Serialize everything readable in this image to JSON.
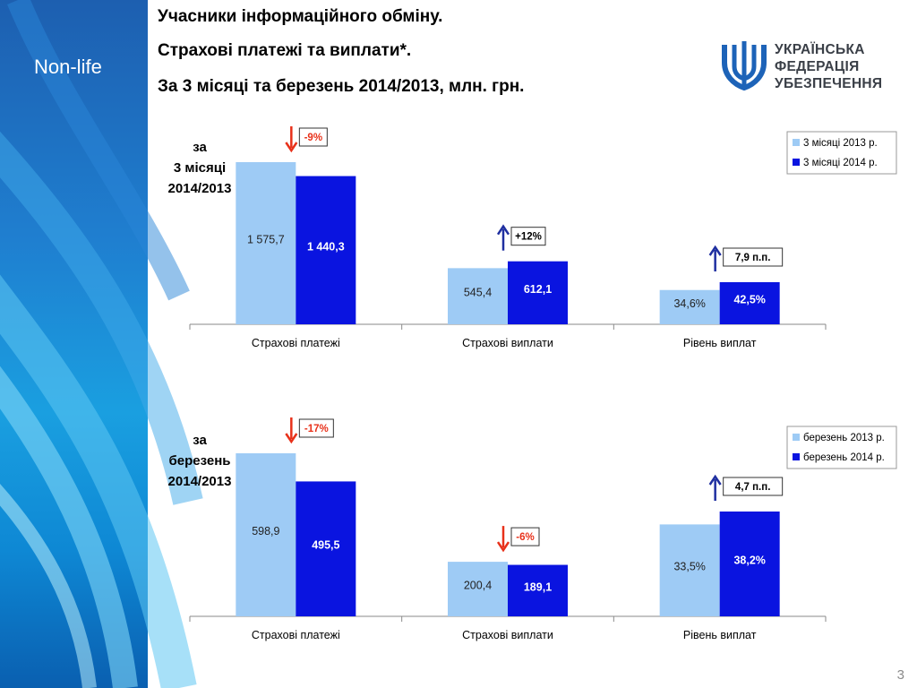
{
  "section_label": "Non-life",
  "title_lines": [
    "Учасники інформаційного обміну.",
    "Страхові платежі та виплати*.",
    "За 3 місяці та березень 2014/2013, млн. грн."
  ],
  "logo_text": [
    "УКРАЇНСЬКА",
    "ФЕДЕРАЦІЯ",
    "УБЕЗПЕЧЕННЯ"
  ],
  "page_number": "3",
  "colors": {
    "light_bar": "#9ecbf5",
    "dark_bar": "#0a14e0",
    "up_arrow": "#1f2fa0",
    "down_arrow": "#e8311a",
    "neg_text": "#e8311a",
    "logo_blue": "#1d63b8"
  },
  "chart_data": [
    {
      "type": "bar",
      "period_label": [
        "за",
        "3 місяці",
        "2014/2013"
      ],
      "categories": [
        "Страхові платежі",
        "Страхові виплати",
        "Рівень виплат"
      ],
      "series": [
        {
          "name": "3 місяці 2013 р.",
          "values": [
            1575.7,
            545.4,
            34.6
          ],
          "labels": [
            "1 575,7",
            "545,4",
            "34,6%"
          ]
        },
        {
          "name": "3 місяці 2014 р.",
          "values": [
            1440.3,
            612.1,
            42.5
          ],
          "labels": [
            "1 440,3",
            "612,1",
            "42,5%"
          ]
        }
      ],
      "changes": [
        {
          "text": "-9%",
          "direction": "down"
        },
        {
          "text": "+12%",
          "direction": "up"
        },
        {
          "text": "7,9 п.п.",
          "direction": "up"
        }
      ],
      "legend_position": "top-right"
    },
    {
      "type": "bar",
      "period_label": [
        "за",
        "березень",
        "2014/2013"
      ],
      "categories": [
        "Страхові платежі",
        "Страхові виплати",
        "Рівень виплат"
      ],
      "series": [
        {
          "name": "березень 2013 р.",
          "values": [
            598.9,
            200.4,
            33.5
          ],
          "labels": [
            "598,9",
            "200,4",
            "33,5%"
          ]
        },
        {
          "name": "березень 2014 р.",
          "values": [
            495.5,
            189.1,
            38.2
          ],
          "labels": [
            "495,5",
            "189,1",
            "38,2%"
          ]
        }
      ],
      "changes": [
        {
          "text": "-17%",
          "direction": "down"
        },
        {
          "text": "-6%",
          "direction": "down"
        },
        {
          "text": "4,7 п.п.",
          "direction": "up"
        }
      ],
      "legend_position": "top-right"
    }
  ]
}
